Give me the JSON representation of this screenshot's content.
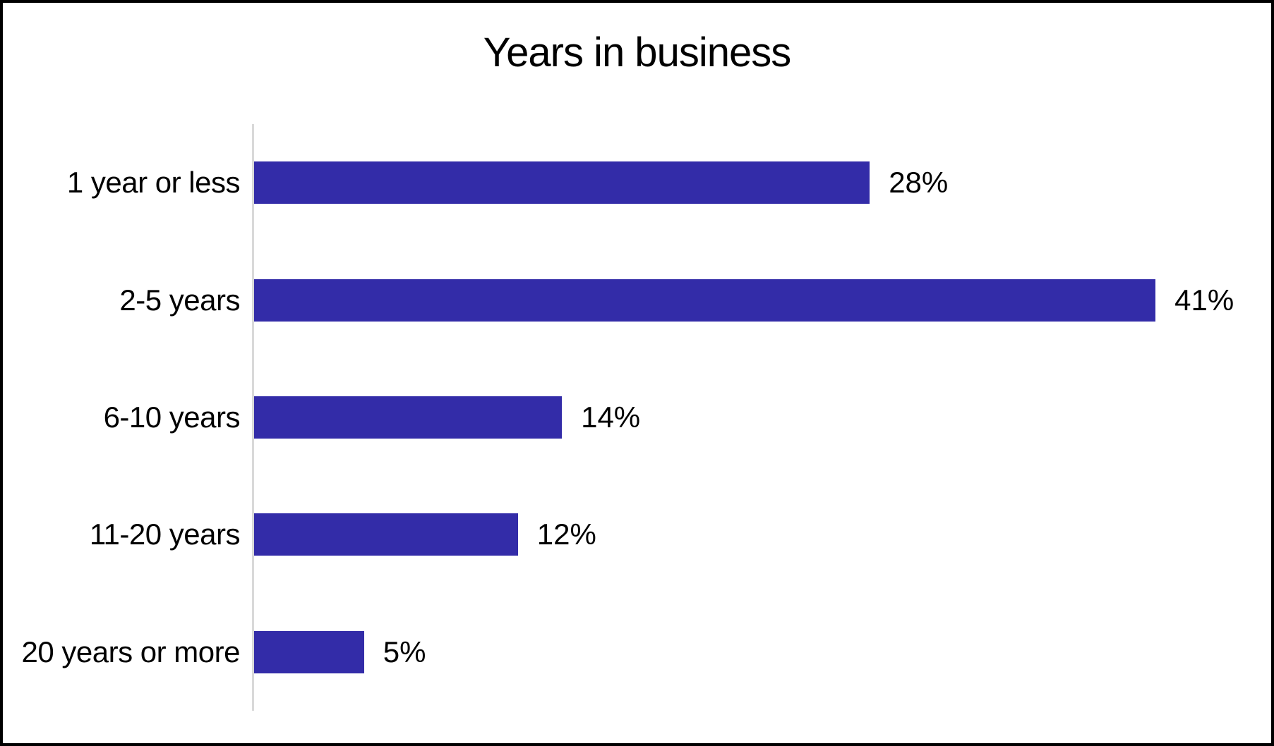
{
  "frame": {
    "background": "#ffffff",
    "border_color": "#000000"
  },
  "chart_data": {
    "type": "bar",
    "orientation": "horizontal",
    "title": "Years in business",
    "categories": [
      "1 year or less",
      "2-5 years",
      "6-10 years",
      "11-20 years",
      "20 years or more"
    ],
    "values": [
      28,
      41,
      14,
      12,
      5
    ],
    "value_labels": [
      "28%",
      "41%",
      "14%",
      "12%",
      "5%"
    ],
    "xlabel": "",
    "ylabel": "",
    "xlim": [
      0,
      46
    ],
    "grid": false,
    "legend": false,
    "data_labels": "outside-end",
    "bar_color": "#332ca8",
    "axis_line_color": "#d9d9d9",
    "text_color": "#000000"
  }
}
